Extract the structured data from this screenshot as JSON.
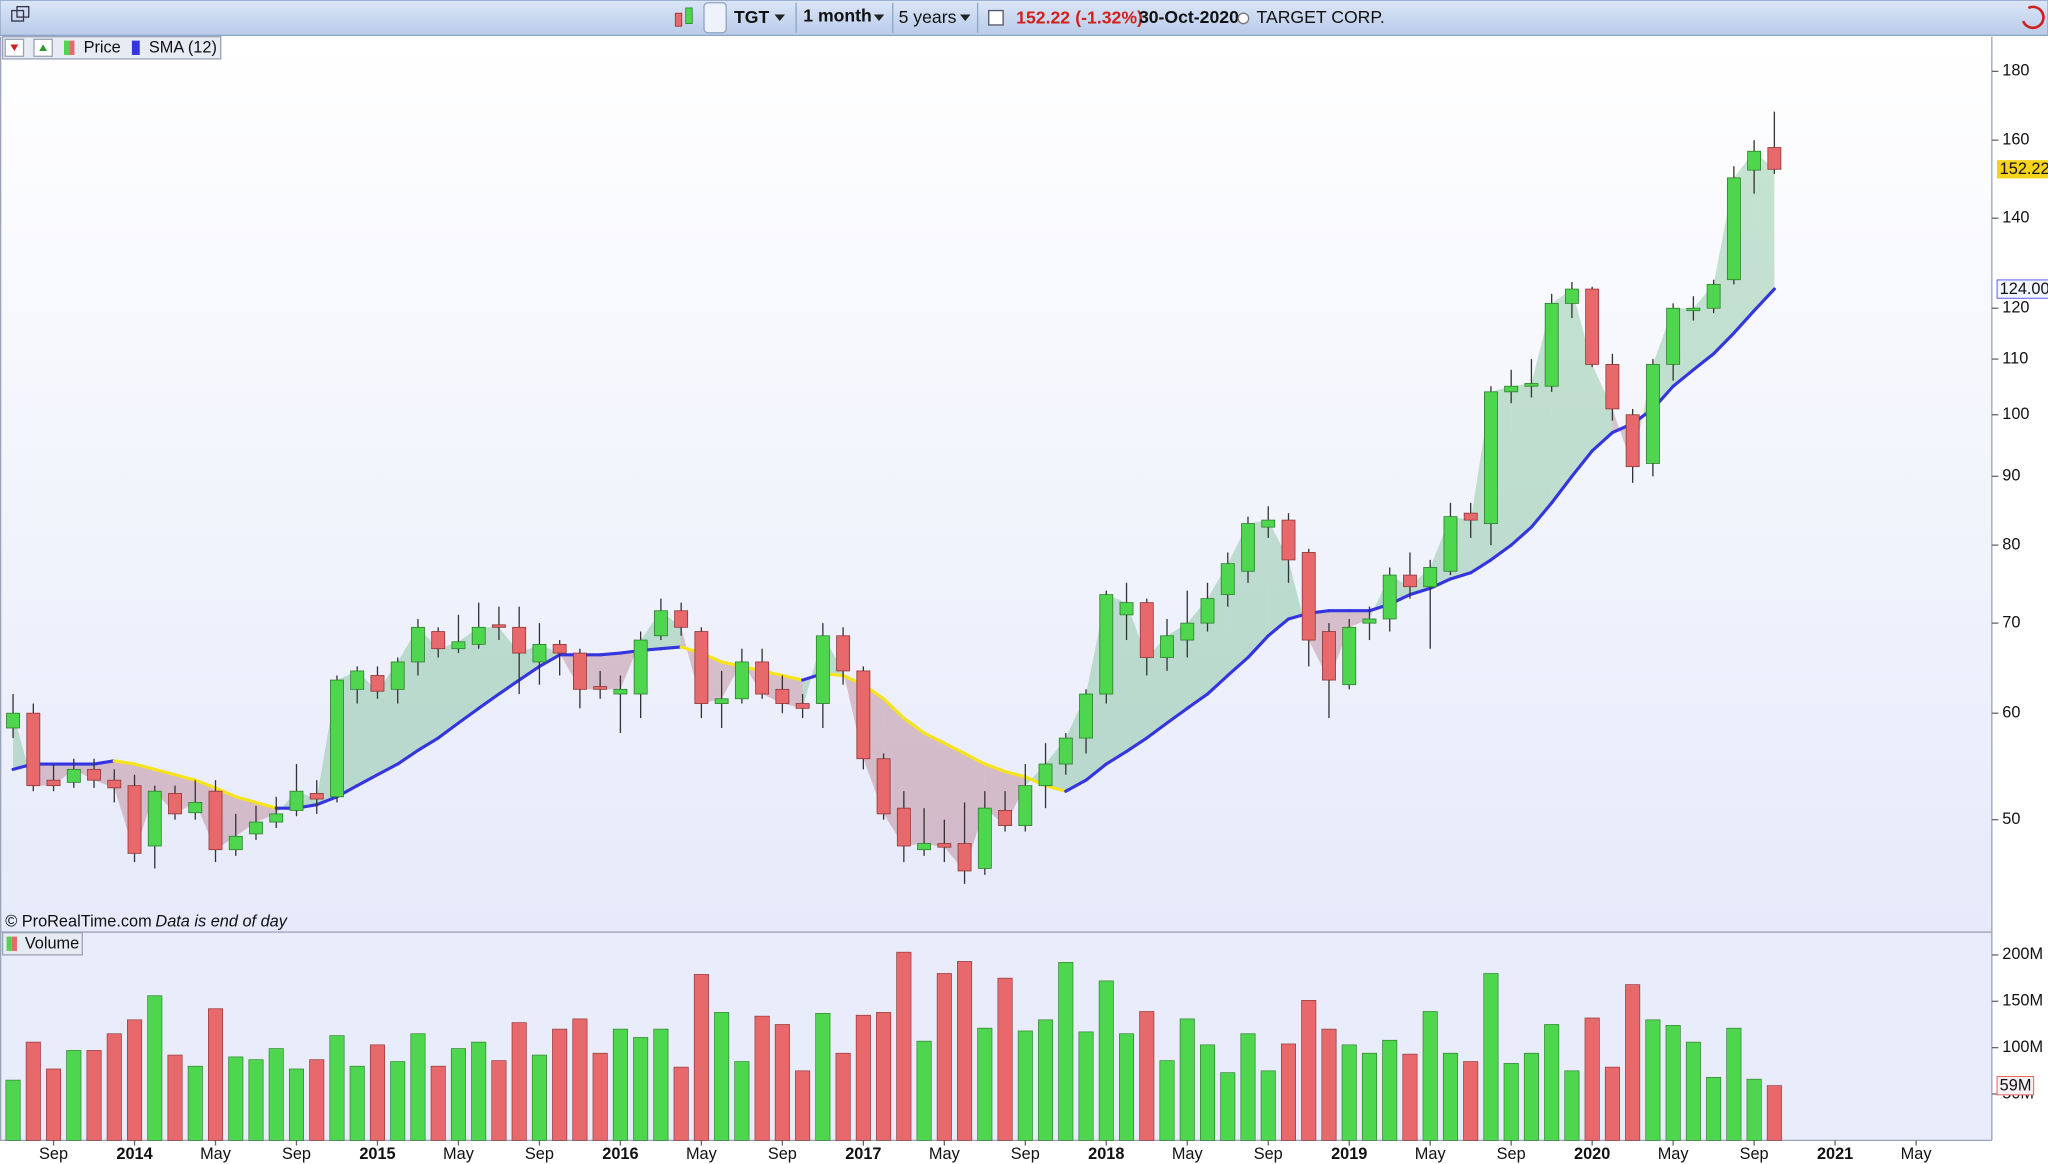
{
  "toolbar": {
    "symbol": "TGT",
    "interval": "1 month",
    "period": "5 years",
    "change": "(-1.32%)",
    "date": "30-Oct-2020",
    "name": "TARGET CORP."
  },
  "notes": {
    "copyright": "© ProRealTime.com",
    "data_note": "Data is end of day"
  },
  "chart_data": [
    {
      "type": "candlestick",
      "name": "Price",
      "log_scale": true,
      "grid": false,
      "up_color": "#4fd64f",
      "down_color": "#e8696b",
      "up_border": "#2b7d2b",
      "down_border": "#8c3434",
      "fill_above": "#3aa35a",
      "fill_below": "#9c3a4a",
      "xlim": [
        "2013-07",
        "2021-07"
      ],
      "ylim": [
        41.3,
        191
      ],
      "yticks": [
        50,
        60,
        70,
        80,
        90,
        100,
        110,
        120,
        140,
        160,
        180
      ],
      "x": [
        "2013-07",
        "2013-08",
        "2013-09",
        "2013-10",
        "2013-11",
        "2013-12",
        "2014-01",
        "2014-02",
        "2014-03",
        "2014-04",
        "2014-05",
        "2014-06",
        "2014-07",
        "2014-08",
        "2014-09",
        "2014-10",
        "2014-11",
        "2014-12",
        "2015-01",
        "2015-02",
        "2015-03",
        "2015-04",
        "2015-05",
        "2015-06",
        "2015-07",
        "2015-08",
        "2015-09",
        "2015-10",
        "2015-11",
        "2015-12",
        "2016-01",
        "2016-02",
        "2016-03",
        "2016-04",
        "2016-05",
        "2016-06",
        "2016-07",
        "2016-08",
        "2016-09",
        "2016-10",
        "2016-11",
        "2016-12",
        "2017-01",
        "2017-02",
        "2017-03",
        "2017-04",
        "2017-05",
        "2017-06",
        "2017-07",
        "2017-08",
        "2017-09",
        "2017-10",
        "2017-11",
        "2017-12",
        "2018-01",
        "2018-02",
        "2018-03",
        "2018-04",
        "2018-05",
        "2018-06",
        "2018-07",
        "2018-08",
        "2018-09",
        "2018-10",
        "2018-11",
        "2018-12",
        "2019-01",
        "2019-02",
        "2019-03",
        "2019-04",
        "2019-05",
        "2019-06",
        "2019-07",
        "2019-08",
        "2019-09",
        "2019-10",
        "2019-11",
        "2019-12",
        "2020-01",
        "2020-02",
        "2020-03",
        "2020-04",
        "2020-05",
        "2020-06",
        "2020-07",
        "2020-08",
        "2020-09",
        "2020-10"
      ],
      "open": [
        58.5,
        60,
        53.5,
        53.3,
        54.5,
        53.5,
        53,
        47.8,
        52.3,
        50.6,
        52.5,
        47.5,
        48.8,
        49.8,
        50.8,
        52.3,
        52,
        62.5,
        64,
        62.5,
        65.5,
        69,
        67,
        67.5,
        69.8,
        69.5,
        65.5,
        67.5,
        66.5,
        62.8,
        62,
        62,
        68.5,
        71.5,
        69,
        61,
        61.5,
        65.5,
        62.5,
        61,
        61,
        68.5,
        64.5,
        55.5,
        51,
        47.5,
        48,
        48,
        46,
        50.8,
        49.5,
        53,
        55,
        57.5,
        62,
        71,
        72.5,
        66,
        68,
        70,
        73.5,
        76.5,
        82.5,
        83.5,
        79,
        69,
        63,
        70,
        70.5,
        76,
        74.5,
        76.5,
        84.5,
        83,
        104,
        105,
        105,
        121,
        124,
        109,
        100,
        92,
        109,
        119.5,
        120,
        126,
        152,
        158
      ],
      "high": [
        62,
        61,
        55,
        55.5,
        55.5,
        54.5,
        54,
        53,
        53,
        53.5,
        53.5,
        50.5,
        51.2,
        52,
        55,
        53.5,
        64,
        65,
        65,
        66,
        70.5,
        69.5,
        71,
        72.5,
        72,
        72,
        70,
        68,
        67,
        64.5,
        64,
        69,
        73,
        72.5,
        69.5,
        64.5,
        67,
        67,
        64,
        62,
        70,
        69.5,
        65,
        56,
        52.5,
        51,
        50,
        51.5,
        52.5,
        52.5,
        55,
        57,
        58,
        62.5,
        74,
        75,
        73,
        70.5,
        74,
        75,
        79,
        84,
        85.5,
        84.5,
        79.5,
        70,
        70.5,
        72,
        77,
        79,
        78,
        86,
        86,
        105,
        108,
        110,
        123,
        125.5,
        124.5,
        111,
        101,
        110,
        121,
        122.5,
        126,
        153,
        160,
        168
      ],
      "low": [
        57.5,
        52.5,
        52.5,
        52.8,
        52.8,
        51.5,
        46.5,
        46,
        50,
        50,
        46.5,
        47,
        48.3,
        49.3,
        50.3,
        50.5,
        51.5,
        61,
        61.5,
        61,
        64,
        66,
        66.5,
        67,
        68,
        62,
        63,
        64,
        60.5,
        61.5,
        58,
        59.5,
        68,
        68.5,
        59.5,
        58.5,
        61,
        61.5,
        60,
        59.5,
        58.5,
        63,
        54.5,
        50,
        46.5,
        47,
        46.5,
        44.8,
        45.5,
        49,
        49,
        51,
        54,
        56,
        61,
        68,
        64,
        64.5,
        66,
        69,
        72,
        75,
        81,
        75,
        65,
        59.5,
        62.5,
        68,
        69,
        73,
        67,
        76,
        81,
        80,
        102,
        103,
        104,
        118,
        108.5,
        99,
        89,
        90,
        106,
        117.5,
        119,
        125,
        146,
        151
      ],
      "close": [
        60,
        53,
        53,
        54.5,
        53.5,
        52.8,
        47.2,
        52.5,
        50.5,
        51.5,
        47.5,
        48.6,
        49.8,
        50.5,
        52.5,
        51.8,
        63.5,
        64.5,
        62.3,
        65.5,
        69.5,
        67,
        67.8,
        69.5,
        69.5,
        66.5,
        67.5,
        66.5,
        62.5,
        62.5,
        62.5,
        68,
        71.5,
        69.5,
        61,
        61.5,
        65.5,
        62,
        61,
        60.5,
        68.5,
        64.5,
        55.5,
        50.5,
        47.8,
        48,
        47.7,
        45.8,
        51,
        49.5,
        53,
        55,
        57.5,
        62,
        73.5,
        72.5,
        66,
        68.5,
        70,
        73,
        77.5,
        83,
        83.5,
        78,
        68,
        63.5,
        69.5,
        70.5,
        76,
        74.5,
        77,
        84,
        83.5,
        104,
        105,
        105.5,
        121,
        124,
        109,
        101,
        91.5,
        109,
        120,
        120,
        125,
        150,
        157,
        152.22
      ],
      "last_marker_color": "#f6d21a",
      "series": [
        {
          "name": "SMA (12)",
          "color": "#3535e0",
          "rising_color": "#3535e0",
          "falling_color": "#f5e31c",
          "last_value_label": "124.00",
          "values": [
            54.5,
            55,
            55,
            55,
            55,
            55.3,
            55,
            54.5,
            54,
            53.5,
            52.8,
            52,
            51.5,
            51,
            51,
            51.3,
            52,
            53,
            54,
            55,
            56.3,
            57.5,
            59,
            60.5,
            62,
            63.5,
            65,
            66.3,
            66.3,
            66.3,
            66.5,
            66.8,
            67,
            67.2,
            66.5,
            65.5,
            65,
            64.5,
            64,
            63.5,
            64.2,
            64,
            63,
            61.5,
            59.5,
            58,
            57,
            56,
            55,
            54.3,
            53.8,
            53,
            52.5,
            53.5,
            55,
            56.2,
            57.5,
            59,
            60.5,
            62,
            64,
            66,
            68.5,
            70.5,
            71.2,
            71.5,
            71.5,
            71.5,
            72.3,
            73.5,
            74.3,
            75.5,
            76.3,
            78,
            80,
            82.5,
            86,
            90,
            94,
            97,
            98.5,
            101,
            105,
            108,
            111,
            115,
            119.5,
            124
          ]
        }
      ]
    },
    {
      "type": "bar",
      "name": "Volume",
      "grid": false,
      "ylim": [
        0,
        224000000
      ],
      "yticks": [
        {
          "value": 50000000,
          "label": "50M"
        },
        {
          "value": 100000000,
          "label": "100M"
        },
        {
          "value": 150000000,
          "label": "150M"
        },
        {
          "value": 200000000,
          "label": "200M"
        }
      ],
      "xticks": [
        {
          "value": "2013-09",
          "label": "Sep"
        },
        {
          "value": "2014-01",
          "label": "2014"
        },
        {
          "value": "2014-05",
          "label": "May"
        },
        {
          "value": "2014-09",
          "label": "Sep"
        },
        {
          "value": "2015-01",
          "label": "2015"
        },
        {
          "value": "2015-05",
          "label": "May"
        },
        {
          "value": "2015-09",
          "label": "Sep"
        },
        {
          "value": "2016-01",
          "label": "2016"
        },
        {
          "value": "2016-05",
          "label": "May"
        },
        {
          "value": "2016-09",
          "label": "Sep"
        },
        {
          "value": "2017-01",
          "label": "2017"
        },
        {
          "value": "2017-05",
          "label": "May"
        },
        {
          "value": "2017-09",
          "label": "Sep"
        },
        {
          "value": "2018-01",
          "label": "2018"
        },
        {
          "value": "2018-05",
          "label": "May"
        },
        {
          "value": "2018-09",
          "label": "Sep"
        },
        {
          "value": "2019-01",
          "label": "2019"
        },
        {
          "value": "2019-05",
          "label": "May"
        },
        {
          "value": "2019-09",
          "label": "Sep"
        },
        {
          "value": "2020-01",
          "label": "2020"
        },
        {
          "value": "2020-05",
          "label": "May"
        },
        {
          "value": "2020-09",
          "label": "Sep"
        },
        {
          "value": "2021-01",
          "label": "2021"
        },
        {
          "value": "2021-05",
          "label": "May"
        }
      ],
      "last_value_label": "59M",
      "values": [
        65000000,
        106000000,
        77000000,
        97000000,
        97000000,
        115000000,
        130000000,
        156000000,
        92000000,
        80000000,
        142000000,
        90000000,
        87000000,
        99000000,
        77000000,
        87000000,
        113000000,
        80000000,
        103000000,
        85000000,
        115000000,
        80000000,
        99000000,
        106000000,
        86000000,
        127000000,
        92000000,
        120000000,
        131000000,
        94000000,
        120000000,
        111000000,
        120000000,
        79000000,
        179000000,
        138000000,
        85000000,
        134000000,
        125000000,
        75000000,
        137000000,
        94000000,
        135000000,
        138000000,
        203000000,
        107000000,
        180000000,
        193000000,
        121000000,
        175000000,
        118000000,
        130000000,
        192000000,
        117000000,
        172000000,
        115000000,
        139000000,
        86000000,
        131000000,
        103000000,
        73000000,
        115000000,
        75000000,
        104000000,
        151000000,
        120000000,
        103000000,
        94000000,
        108000000,
        93000000,
        139000000,
        94000000,
        85000000,
        180000000,
        83000000,
        94000000,
        125000000,
        75000000,
        132000000,
        79000000,
        168000000,
        130000000,
        124000000,
        106000000,
        68000000,
        121000000,
        66000000,
        59000000
      ]
    }
  ]
}
